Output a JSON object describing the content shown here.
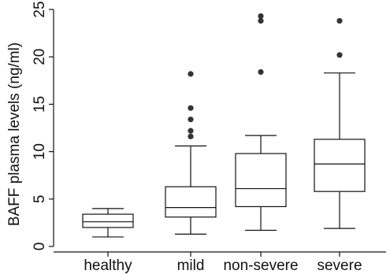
{
  "chart_data": {
    "type": "boxplot",
    "title": "",
    "xlabel": "",
    "ylabel": "BAFF plasma levels (ng/ml)",
    "ylim": [
      0,
      25
    ],
    "yticks": [
      0,
      5,
      10,
      15,
      20,
      25
    ],
    "ytick_labels": [
      "0",
      "5",
      "10",
      "15",
      "20",
      "25"
    ],
    "grid": false,
    "categories": [
      "healthy",
      "mild",
      "non-severe",
      "severe"
    ],
    "boxes": [
      {
        "name": "healthy",
        "whisker_low": 1.0,
        "q1": 2.0,
        "median": 2.6,
        "q3": 3.4,
        "whisker_high": 4.0,
        "outliers": []
      },
      {
        "name": "mild",
        "whisker_low": 1.3,
        "q1": 3.1,
        "median": 4.1,
        "q3": 6.3,
        "whisker_high": 10.6,
        "outliers": [
          11.6,
          12.2,
          13.4,
          14.6,
          18.2
        ]
      },
      {
        "name": "non-severe",
        "whisker_low": 1.7,
        "q1": 4.2,
        "median": 6.1,
        "q3": 9.8,
        "whisker_high": 11.7,
        "outliers": [
          18.4,
          23.8,
          24.3
        ]
      },
      {
        "name": "severe",
        "whisker_low": 1.9,
        "q1": 5.8,
        "median": 8.7,
        "q3": 11.3,
        "whisker_high": 18.3,
        "outliers": [
          20.2,
          23.8
        ]
      }
    ],
    "colors": {
      "box_fill": "#ffffff",
      "stroke": "#111111",
      "outlier": "#333333"
    }
  }
}
